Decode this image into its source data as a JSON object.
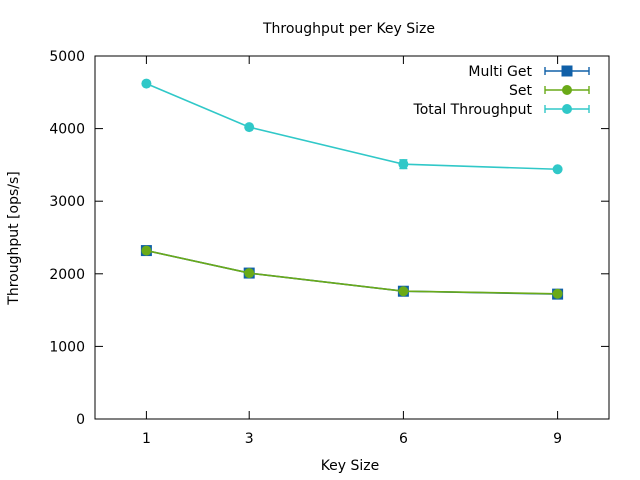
{
  "chart_data": {
    "type": "line",
    "title": "Throughput per Key Size",
    "xlabel": "Key Size",
    "ylabel": "Throughput [ops/s]",
    "x": [
      1,
      3,
      6,
      9
    ],
    "x_ticks": [
      "1",
      "3",
      "6",
      "9"
    ],
    "xlim": [
      0,
      10
    ],
    "ylim": [
      0,
      5000
    ],
    "y_ticks": [
      0,
      1000,
      2000,
      3000,
      4000,
      5000
    ],
    "grid": false,
    "legend_position": "top-right",
    "series": [
      {
        "name": "Multi Get",
        "values": [
          2320,
          2010,
          1760,
          1720
        ],
        "errors": [
          15,
          15,
          20,
          15
        ],
        "color": "#1060a8",
        "marker": "square"
      },
      {
        "name": "Set",
        "values": [
          2320,
          2010,
          1760,
          1725
        ],
        "errors": [
          15,
          15,
          20,
          15
        ],
        "color": "#6aaa18",
        "marker": "circle"
      },
      {
        "name": "Total Throughput",
        "values": [
          4620,
          4020,
          3510,
          3440
        ],
        "errors": [
          25,
          20,
          60,
          25
        ],
        "color": "#30c8c8",
        "marker": "circle"
      }
    ]
  }
}
